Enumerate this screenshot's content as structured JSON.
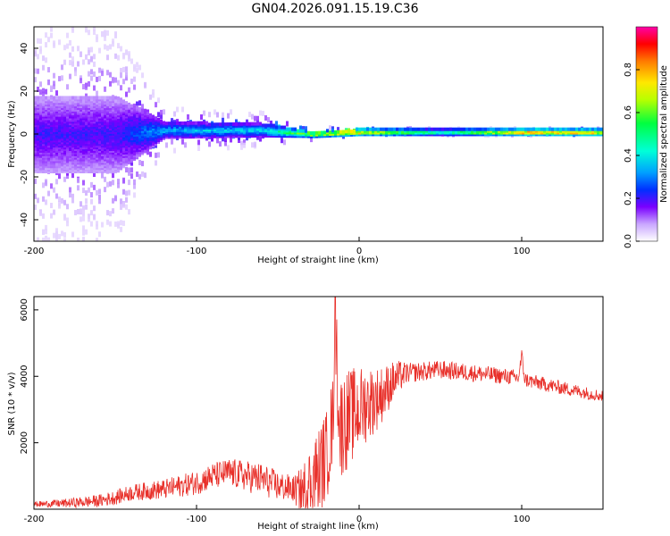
{
  "title": "GN04.2026.091.15.19.C36",
  "chart_data": [
    {
      "type": "heatmap",
      "name": "spectrogram",
      "xlabel": "Height of straight line (km)",
      "ylabel": "Frequency (Hz)",
      "xlim": [
        -200,
        150
      ],
      "ylim": [
        -50,
        50
      ],
      "xticks": [
        -200,
        -100,
        0,
        100
      ],
      "yticks": [
        -40,
        -20,
        0,
        20,
        40
      ],
      "colorbar": {
        "label": "Normalized spectral amplitude",
        "range": [
          0,
          1
        ],
        "ticks": [
          0.0,
          0.2,
          0.4,
          0.6,
          0.8
        ]
      },
      "description_points": [
        {
          "x": -200,
          "center_hz": 0,
          "spread_hz": 50,
          "amplitude": 0.2
        },
        {
          "x": -150,
          "center_hz": 0,
          "spread_hz": 50,
          "amplitude": 0.2
        },
        {
          "x": -120,
          "center_hz": 2,
          "spread_hz": 10,
          "amplitude": 0.35
        },
        {
          "x": -60,
          "center_hz": 2,
          "spread_hz": 8,
          "amplitude": 0.4
        },
        {
          "x": -30,
          "center_hz": 0,
          "spread_hz": 3,
          "amplitude": 0.7
        },
        {
          "x": 0,
          "center_hz": 1,
          "spread_hz": 2,
          "amplitude": 0.85
        },
        {
          "x": 50,
          "center_hz": 1,
          "spread_hz": 1.5,
          "amplitude": 0.5
        },
        {
          "x": 100,
          "center_hz": 1,
          "spread_hz": 1.5,
          "amplitude": 0.9
        },
        {
          "x": 150,
          "center_hz": 1,
          "spread_hz": 1.5,
          "amplitude": 0.85
        }
      ]
    },
    {
      "type": "line",
      "name": "snr",
      "xlabel": "Height of straight line (km)",
      "ylabel": "SNR (10 * v/v)",
      "xlim": [
        -200,
        150
      ],
      "ylim": [
        0,
        6400
      ],
      "xticks": [
        -200,
        -100,
        0,
        100
      ],
      "yticks": [
        2000,
        4000,
        6000
      ],
      "color": "#e8302a",
      "series": [
        {
          "name": "SNR",
          "x": [
            -200,
            -180,
            -160,
            -150,
            -140,
            -120,
            -110,
            -100,
            -90,
            -80,
            -70,
            -60,
            -50,
            -40,
            -35,
            -30,
            -25,
            -20,
            -18,
            -16,
            -15,
            -12,
            -10,
            -5,
            0,
            5,
            10,
            15,
            20,
            25,
            30,
            40,
            50,
            60,
            70,
            80,
            90,
            98,
            100,
            102,
            110,
            120,
            130,
            140,
            150
          ],
          "y": [
            150,
            180,
            250,
            350,
            500,
            600,
            700,
            800,
            1000,
            1100,
            1000,
            900,
            700,
            600,
            500,
            800,
            1200,
            1600,
            2200,
            2600,
            6300,
            2400,
            2600,
            2800,
            3000,
            3200,
            3300,
            3500,
            3800,
            4000,
            4100,
            4150,
            4200,
            4150,
            4100,
            4050,
            4000,
            3950,
            4600,
            3900,
            3800,
            3700,
            3600,
            3500,
            3400
          ]
        }
      ],
      "noise_envelope": [
        {
          "x": -200,
          "amp": 80
        },
        {
          "x": -120,
          "amp": 300
        },
        {
          "x": -60,
          "amp": 500
        },
        {
          "x": -40,
          "amp": 400
        },
        {
          "x": -30,
          "amp": 1200
        },
        {
          "x": -10,
          "amp": 1600
        },
        {
          "x": 10,
          "amp": 1000
        },
        {
          "x": 30,
          "amp": 300
        },
        {
          "x": 150,
          "amp": 180
        }
      ]
    }
  ]
}
